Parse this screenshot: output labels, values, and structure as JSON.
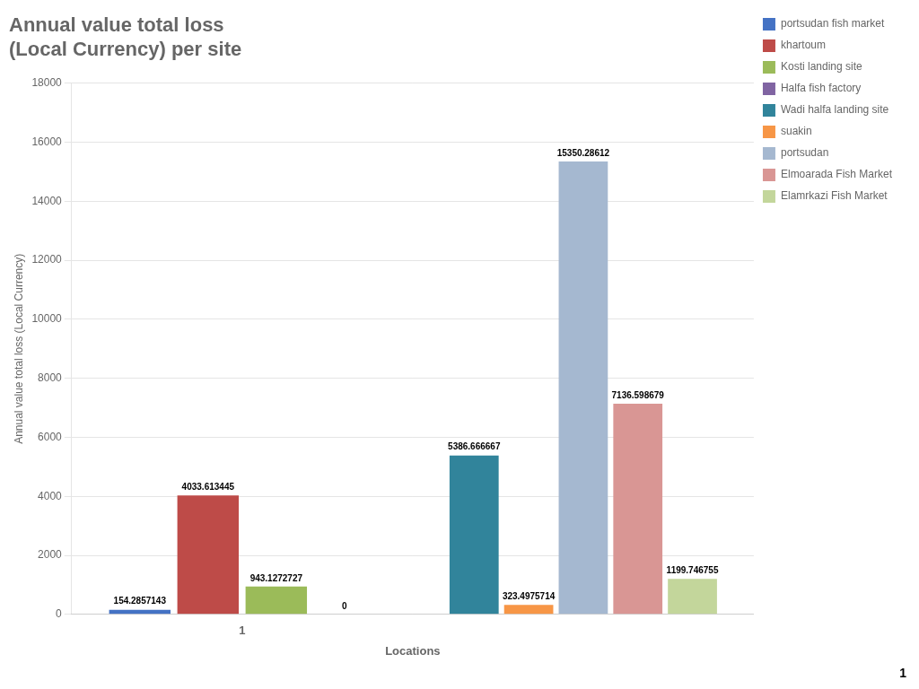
{
  "chart_data": {
    "type": "bar",
    "title": [
      "Annual value total loss",
      "(Local Currency) per site"
    ],
    "x_label": "Locations",
    "y_label": "Annual value total loss (Local Currency)",
    "categories": [
      "1",
      null
    ],
    "series": [
      {
        "name": "portsudan fish market",
        "color": "#4472C4",
        "values": [
          154.2857143,
          null
        ]
      },
      {
        "name": "khartoum",
        "color": "#BE4B48",
        "values": [
          4033.613445,
          null
        ]
      },
      {
        "name": "Kosti landing site",
        "color": "#9BBB59",
        "values": [
          943.1272727,
          null
        ]
      },
      {
        "name": "Halfa fish factory",
        "color": "#8064A2",
        "values": [
          0,
          null
        ]
      },
      {
        "name": "Wadi halfa landing site",
        "color": "#31849B",
        "values": [
          null,
          5386.666667
        ]
      },
      {
        "name": "suakin",
        "color": "#F79646",
        "values": [
          null,
          323.4975714
        ]
      },
      {
        "name": "portsudan",
        "color": "#A5B8D0",
        "values": [
          null,
          15350.28612
        ]
      },
      {
        "name": "Elmoarada Fish Market",
        "color": "#D99694",
        "values": [
          null,
          7136.598679
        ]
      },
      {
        "name": "Elamrkazi Fish Market",
        "color": "#C3D69B",
        "values": [
          null,
          1199.746755
        ]
      }
    ],
    "ylim": [
      0,
      18000
    ],
    "yticks": [
      0,
      2000,
      4000,
      6000,
      8000,
      10000,
      12000,
      14000,
      16000,
      18000
    ],
    "grid": true,
    "legend": "right",
    "data_labels": true,
    "annotations": [
      "1"
    ]
  }
}
